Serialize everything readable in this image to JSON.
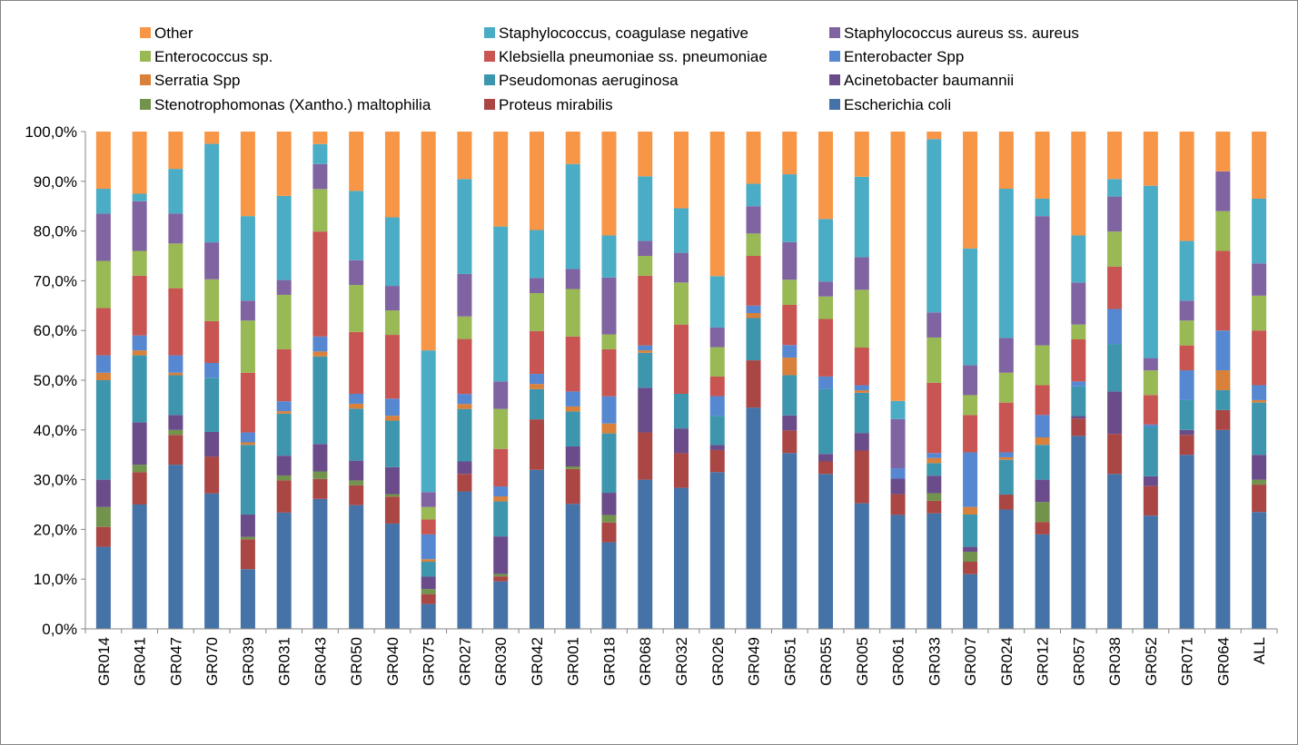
{
  "chart_data": {
    "type": "bar",
    "stacked": true,
    "percent_stacked": true,
    "title": "",
    "xlabel": "",
    "ylabel": "",
    "ylim": [
      0,
      100
    ],
    "y_ticks": [
      "0,0%",
      "10,0%",
      "20,0%",
      "30,0%",
      "40,0%",
      "50,0%",
      "60,0%",
      "70,0%",
      "80,0%",
      "90,0%",
      "100,0%"
    ],
    "grid": false,
    "legend_placement": "top",
    "categories": [
      "GR014",
      "GR041",
      "GR047",
      "GR070",
      "GR039",
      "GR031",
      "GR043",
      "GR050",
      "GR040",
      "GR075",
      "GR027",
      "GR030",
      "GR042",
      "GR001",
      "GR018",
      "GR068",
      "GR032",
      "GR026",
      "GR049",
      "GR051",
      "GR055",
      "GR005",
      "GR061",
      "GR033",
      "GR007",
      "GR024",
      "GR012",
      "GR057",
      "GR038",
      "GR052",
      "GR071",
      "GR064",
      "ALL"
    ],
    "series": [
      {
        "name": "Escherichia coli",
        "color": "#4572A7",
        "values": [
          16.5,
          25,
          33,
          27.5,
          12,
          23.5,
          26,
          25,
          21.5,
          5,
          27.5,
          9.5,
          31.5,
          25,
          17.5,
          30,
          28.5,
          32,
          44.5,
          35,
          31,
          25,
          22,
          23,
          11,
          24,
          19,
          39,
          31,
          23,
          35,
          40,
          23.5
        ]
      },
      {
        "name": "Proteus mirabilis",
        "color": "#AA4643",
        "values": [
          4,
          6.5,
          6,
          7.5,
          6,
          6.5,
          4,
          4,
          5.5,
          2,
          3.5,
          1,
          10,
          7,
          4,
          9.5,
          7,
          4.5,
          9.5,
          4.5,
          2.5,
          10.5,
          4,
          2.5,
          2.5,
          3,
          2.5,
          3.5,
          8,
          6,
          4,
          4,
          5.5
        ]
      },
      {
        "name": "Stenotrophomonas (Xantho.) maltophilia",
        "color": "#71934B",
        "values": [
          4,
          1.5,
          1,
          0,
          0.5,
          1,
          1.5,
          1,
          0.5,
          1,
          0,
          0.5,
          0,
          0.5,
          1.5,
          0,
          0,
          0,
          0,
          0,
          0,
          0,
          0,
          1.5,
          2,
          0,
          4,
          0,
          0,
          0,
          0,
          0,
          1
        ]
      },
      {
        "name": "Acinetobacter baumannii",
        "color": "#6B4C8A",
        "values": [
          5.5,
          8.5,
          3,
          5,
          4.5,
          4,
          5.5,
          4,
          5.5,
          2.5,
          2.5,
          7.5,
          0,
          4,
          4.5,
          9,
          5,
          1,
          0,
          3,
          1.5,
          3.5,
          3,
          3.5,
          1,
          0,
          4.5,
          0.5,
          8.5,
          2,
          1,
          0,
          5
        ]
      },
      {
        "name": "Pseudomonas aeruginosa",
        "color": "#3D96AE",
        "values": [
          20,
          13.5,
          8,
          11,
          14,
          8.5,
          17.5,
          10.5,
          9.5,
          3,
          10.5,
          7,
          6,
          7,
          12,
          7,
          7,
          6,
          8.5,
          8,
          13,
          8,
          0,
          2.5,
          6.5,
          7,
          7,
          6,
          9.5,
          10,
          6,
          4,
          10.5
        ]
      },
      {
        "name": "Serratia Spp",
        "color": "#D9803A",
        "values": [
          1.5,
          1,
          0.5,
          0,
          0.5,
          0.5,
          1,
          1,
          1,
          0.5,
          1,
          1,
          1,
          1,
          2,
          0.5,
          0,
          0,
          1,
          3.5,
          0,
          0.5,
          0,
          1,
          1.5,
          0.5,
          1.5,
          0,
          0,
          0,
          0,
          4,
          0.5
        ]
      },
      {
        "name": "Enterobacter Spp",
        "color": "#5687D1",
        "values": [
          3.5,
          3,
          3.5,
          3,
          2,
          2,
          3,
          2,
          3.5,
          5,
          2,
          2,
          2,
          3,
          5.5,
          1,
          0,
          4,
          1.5,
          2.5,
          2.5,
          1,
          2,
          1,
          11,
          1,
          4.5,
          1,
          7,
          0.5,
          6,
          8,
          3
        ]
      },
      {
        "name": "Klebsiella pneumoniae ss. pneumoniae",
        "color": "#C85552",
        "values": [
          9.5,
          12,
          13.5,
          8.5,
          12,
          10.5,
          21,
          12.5,
          13,
          3,
          11,
          7.5,
          8.5,
          11,
          9.5,
          14,
          14,
          4,
          10,
          8,
          11.5,
          7.5,
          0,
          14,
          7.5,
          10,
          6,
          8.5,
          8.5,
          6,
          5,
          16,
          11
        ]
      },
      {
        "name": "Enterococcus sp.",
        "color": "#98B954",
        "values": [
          9.5,
          5,
          9,
          8.5,
          10.5,
          11,
          8.5,
          9.5,
          5,
          2.5,
          4.5,
          8,
          7.5,
          9.5,
          3,
          4,
          8.5,
          6,
          4.5,
          5,
          4.5,
          11.5,
          0,
          9,
          4,
          6,
          8,
          3,
          7,
          5,
          5,
          8,
          7
        ]
      },
      {
        "name": "Staphylococcus aureus ss. aureus",
        "color": "#8064A2",
        "values": [
          9.5,
          10,
          6,
          7.5,
          4,
          3,
          5,
          5,
          5,
          3,
          8.5,
          5.5,
          3,
          4,
          11.5,
          3,
          6,
          4,
          5.5,
          7.5,
          3,
          6.5,
          9.5,
          5,
          6,
          7,
          26,
          8.5,
          7,
          2.5,
          4,
          8,
          6.5
        ]
      },
      {
        "name": "Staphylococcus, coagulase negative",
        "color": "#4BACC6",
        "values": [
          5,
          1.5,
          9,
          20,
          17,
          17,
          4,
          14,
          14,
          28.5,
          19,
          31,
          9.5,
          21,
          8.5,
          13,
          9,
          10.5,
          4.5,
          13.5,
          12.5,
          16,
          3.5,
          34.5,
          23.5,
          30,
          3.5,
          9.5,
          3.5,
          35,
          12,
          0,
          13
        ]
      },
      {
        "name": "Other",
        "color": "#F79646",
        "values": [
          11.5,
          12.5,
          7.5,
          2.5,
          17,
          13,
          2.5,
          12,
          17.5,
          44,
          9.5,
          19,
          19.5,
          6.5,
          21,
          9,
          15.5,
          29.5,
          10.5,
          8.5,
          17.5,
          9,
          52,
          1.5,
          23.5,
          11.5,
          13.5,
          21,
          9.5,
          11,
          22,
          8,
          13.5
        ]
      }
    ],
    "legend_rows": [
      [
        "Other",
        "Staphylococcus, coagulase negative",
        "Staphylococcus aureus ss. aureus"
      ],
      [
        "Enterococcus sp.",
        "Klebsiella pneumoniae ss. pneumoniae",
        "Enterobacter Spp"
      ],
      [
        "Serratia Spp",
        "Pseudomonas aeruginosa",
        "Acinetobacter baumannii"
      ],
      [
        "Stenotrophomonas (Xantho.) maltophilia",
        "Proteus mirabilis",
        "Escherichia coli"
      ]
    ]
  }
}
